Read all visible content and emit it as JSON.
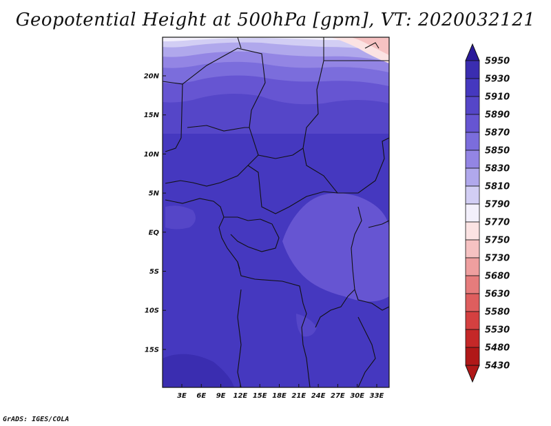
{
  "title": "Geopotential Height at 500hPa [gpm], VT: 2020032121",
  "credit": "GrADS: IGES/COLA",
  "map": {
    "lon_labels": [
      "3E",
      "6E",
      "9E",
      "12E",
      "15E",
      "18E",
      "21E",
      "24E",
      "27E",
      "30E",
      "33E"
    ],
    "lat_labels": [
      "20N",
      "15N",
      "10N",
      "5N",
      "EQ",
      "5S",
      "10S",
      "15S"
    ]
  },
  "colorbar": {
    "levels": [
      "5950",
      "5930",
      "5910",
      "5890",
      "5870",
      "5850",
      "5830",
      "5810",
      "5790",
      "5770",
      "5750",
      "5730",
      "5680",
      "5630",
      "5580",
      "5530",
      "5480",
      "5430"
    ],
    "colors": [
      "#2a1a9a",
      "#3a2db0",
      "#4538bf",
      "#5546c8",
      "#6655d2",
      "#7b6ddc",
      "#9385e4",
      "#b0a8ec",
      "#d2cef4",
      "#f3f0fb",
      "#fbe3e3",
      "#f6c2c2",
      "#ee9f9f",
      "#e67c7c",
      "#de5e5e",
      "#d44040",
      "#c42828",
      "#b01818"
    ]
  }
}
